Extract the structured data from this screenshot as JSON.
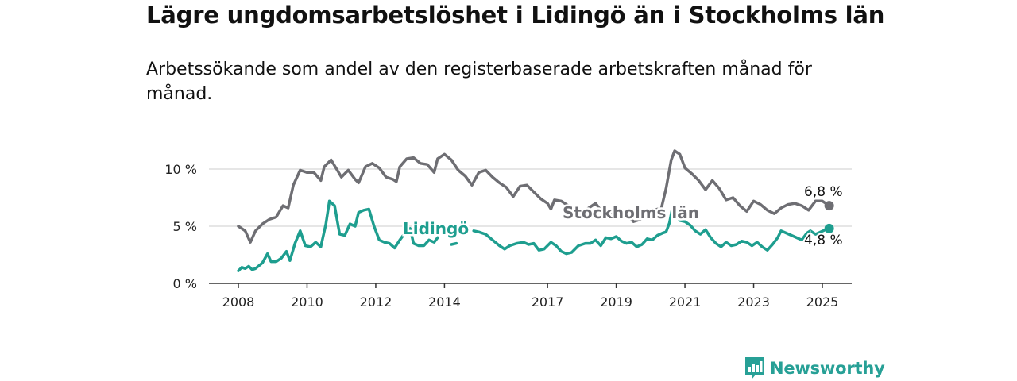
{
  "title": "Lägre ungdomsarbetslöshet i Lidingö än i Stockholms län",
  "subtitle": "Arbetssökande som andel av den registerbaserade arbetskraften månad för månad.",
  "logo_text": "Newsworthy",
  "colors": {
    "lidingo": "#1e9e8f",
    "stockholm": "#6e6e73",
    "grid": "#dddddd",
    "axis": "#333333",
    "logo": "#27a096"
  },
  "chart_data": {
    "type": "line",
    "ylim": [
      0,
      12
    ],
    "xlim": [
      2007.6,
      2026.0
    ],
    "yticks": [
      0,
      5,
      10
    ],
    "ytick_labels": [
      "0 %",
      "5 %",
      "10 %"
    ],
    "xticks": [
      2008,
      2010,
      2012,
      2014,
      2017,
      2019,
      2021,
      2023,
      2025
    ],
    "xtick_labels": [
      "2008",
      "2010",
      "2012",
      "2014",
      "2017",
      "2019",
      "2021",
      "2023",
      "2025"
    ],
    "grid": true,
    "series": [
      {
        "name": "Stockholms län",
        "end_label": "6,8 %",
        "points": [
          [
            2008.0,
            5.0
          ],
          [
            2008.2,
            4.6
          ],
          [
            2008.35,
            3.6
          ],
          [
            2008.5,
            4.6
          ],
          [
            2008.7,
            5.2
          ],
          [
            2008.9,
            5.6
          ],
          [
            2009.1,
            5.8
          ],
          [
            2009.3,
            6.8
          ],
          [
            2009.45,
            6.6
          ],
          [
            2009.6,
            8.6
          ],
          [
            2009.8,
            9.9
          ],
          [
            2010.0,
            9.7
          ],
          [
            2010.2,
            9.7
          ],
          [
            2010.4,
            9.0
          ],
          [
            2010.5,
            10.2
          ],
          [
            2010.7,
            10.8
          ],
          [
            2010.9,
            9.8
          ],
          [
            2011.0,
            9.3
          ],
          [
            2011.2,
            9.9
          ],
          [
            2011.4,
            9.1
          ],
          [
            2011.5,
            8.8
          ],
          [
            2011.7,
            10.2
          ],
          [
            2011.9,
            10.5
          ],
          [
            2012.1,
            10.1
          ],
          [
            2012.3,
            9.3
          ],
          [
            2012.5,
            9.1
          ],
          [
            2012.6,
            8.9
          ],
          [
            2012.7,
            10.2
          ],
          [
            2012.9,
            10.9
          ],
          [
            2013.1,
            11.0
          ],
          [
            2013.3,
            10.5
          ],
          [
            2013.5,
            10.4
          ],
          [
            2013.7,
            9.7
          ],
          [
            2013.8,
            10.9
          ],
          [
            2014.0,
            11.3
          ],
          [
            2014.2,
            10.8
          ],
          [
            2014.4,
            9.9
          ],
          [
            2014.6,
            9.4
          ],
          [
            2014.8,
            8.6
          ],
          [
            2015.0,
            9.7
          ],
          [
            2015.2,
            9.9
          ],
          [
            2015.4,
            9.3
          ],
          [
            2015.6,
            8.8
          ],
          [
            2015.8,
            8.4
          ],
          [
            2016.0,
            7.6
          ],
          [
            2016.2,
            8.5
          ],
          [
            2016.4,
            8.6
          ],
          [
            2016.6,
            8.0
          ],
          [
            2016.8,
            7.4
          ],
          [
            2017.0,
            7.0
          ],
          [
            2017.1,
            6.5
          ],
          [
            2017.2,
            7.3
          ],
          [
            2017.4,
            7.2
          ],
          [
            2017.6,
            6.8
          ],
          [
            2017.8,
            6.5
          ],
          [
            2018.0,
            6.2
          ],
          [
            2018.2,
            6.6
          ],
          [
            2018.4,
            7.0
          ],
          [
            2018.5,
            6.6
          ],
          [
            2018.6,
            6.3
          ],
          [
            2018.8,
            5.9
          ],
          [
            2019.0,
            6.3
          ],
          [
            2019.2,
            6.2
          ],
          [
            2019.4,
            5.7
          ],
          [
            2019.5,
            5.4
          ],
          [
            2019.7,
            5.6
          ],
          [
            2019.9,
            6.0
          ],
          [
            2020.0,
            6.3
          ],
          [
            2020.2,
            6.5
          ],
          [
            2020.3,
            6.4
          ],
          [
            2020.45,
            8.3
          ],
          [
            2020.6,
            10.8
          ],
          [
            2020.7,
            11.6
          ],
          [
            2020.85,
            11.3
          ],
          [
            2021.0,
            10.1
          ],
          [
            2021.2,
            9.6
          ],
          [
            2021.4,
            9.0
          ],
          [
            2021.6,
            8.2
          ],
          [
            2021.8,
            9.0
          ],
          [
            2022.0,
            8.3
          ],
          [
            2022.2,
            7.3
          ],
          [
            2022.4,
            7.5
          ],
          [
            2022.6,
            6.8
          ],
          [
            2022.8,
            6.3
          ],
          [
            2023.0,
            7.2
          ],
          [
            2023.2,
            6.9
          ],
          [
            2023.4,
            6.4
          ],
          [
            2023.6,
            6.1
          ],
          [
            2023.8,
            6.6
          ],
          [
            2024.0,
            6.9
          ],
          [
            2024.2,
            7.0
          ],
          [
            2024.4,
            6.8
          ],
          [
            2024.6,
            6.4
          ],
          [
            2024.8,
            7.2
          ],
          [
            2025.0,
            7.2
          ],
          [
            2025.2,
            6.8
          ]
        ]
      },
      {
        "name": "Lidingö",
        "end_label": "4,8 %",
        "points": [
          [
            2008.0,
            1.1
          ],
          [
            2008.1,
            1.4
          ],
          [
            2008.2,
            1.3
          ],
          [
            2008.3,
            1.5
          ],
          [
            2008.4,
            1.2
          ],
          [
            2008.5,
            1.3
          ],
          [
            2008.7,
            1.8
          ],
          [
            2008.85,
            2.6
          ],
          [
            2008.95,
            1.9
          ],
          [
            2009.1,
            1.9
          ],
          [
            2009.25,
            2.2
          ],
          [
            2009.4,
            2.8
          ],
          [
            2009.5,
            2.0
          ],
          [
            2009.65,
            3.5
          ],
          [
            2009.8,
            4.6
          ],
          [
            2009.95,
            3.3
          ],
          [
            2010.1,
            3.2
          ],
          [
            2010.25,
            3.6
          ],
          [
            2010.4,
            3.2
          ],
          [
            2010.55,
            5.2
          ],
          [
            2010.65,
            7.2
          ],
          [
            2010.8,
            6.8
          ],
          [
            2010.95,
            4.3
          ],
          [
            2011.1,
            4.2
          ],
          [
            2011.25,
            5.2
          ],
          [
            2011.4,
            5.0
          ],
          [
            2011.5,
            6.2
          ],
          [
            2011.65,
            6.4
          ],
          [
            2011.8,
            6.5
          ],
          [
            2011.95,
            5.0
          ],
          [
            2012.1,
            3.8
          ],
          [
            2012.25,
            3.6
          ],
          [
            2012.4,
            3.5
          ],
          [
            2012.55,
            3.1
          ],
          [
            2012.7,
            3.8
          ],
          [
            2012.85,
            4.4
          ],
          [
            2013.0,
            4.8
          ],
          [
            2013.1,
            3.5
          ],
          [
            2013.25,
            3.3
          ],
          [
            2013.4,
            3.3
          ],
          [
            2013.55,
            3.8
          ],
          [
            2013.7,
            3.6
          ],
          [
            2013.8,
            4.0
          ],
          null,
          [
            2014.2,
            3.4
          ],
          [
            2014.35,
            3.5
          ],
          null,
          [
            2014.85,
            4.6
          ],
          [
            2015.0,
            4.5
          ],
          [
            2015.2,
            4.3
          ],
          [
            2015.4,
            3.8
          ],
          [
            2015.6,
            3.3
          ],
          [
            2015.75,
            3.0
          ],
          [
            2015.9,
            3.3
          ],
          [
            2016.1,
            3.5
          ],
          [
            2016.3,
            3.6
          ],
          [
            2016.45,
            3.4
          ],
          [
            2016.6,
            3.5
          ],
          [
            2016.75,
            2.9
          ],
          [
            2016.9,
            3.0
          ],
          [
            2017.1,
            3.6
          ],
          [
            2017.25,
            3.3
          ],
          [
            2017.4,
            2.8
          ],
          [
            2017.55,
            2.6
          ],
          [
            2017.7,
            2.7
          ],
          [
            2017.9,
            3.3
          ],
          [
            2018.1,
            3.5
          ],
          [
            2018.25,
            3.5
          ],
          [
            2018.4,
            3.8
          ],
          [
            2018.55,
            3.3
          ],
          [
            2018.7,
            4.0
          ],
          [
            2018.85,
            3.9
          ],
          [
            2019.0,
            4.1
          ],
          [
            2019.15,
            3.7
          ],
          [
            2019.3,
            3.5
          ],
          [
            2019.45,
            3.6
          ],
          [
            2019.6,
            3.2
          ],
          [
            2019.75,
            3.4
          ],
          [
            2019.9,
            3.9
          ],
          [
            2020.05,
            3.8
          ],
          [
            2020.2,
            4.2
          ],
          [
            2020.35,
            4.4
          ],
          [
            2020.45,
            4.5
          ],
          [
            2020.55,
            5.3
          ],
          [
            2020.65,
            6.8
          ],
          [
            2020.75,
            6.5
          ],
          [
            2020.85,
            5.5
          ],
          [
            2021.0,
            5.4
          ],
          [
            2021.15,
            5.1
          ],
          [
            2021.3,
            4.6
          ],
          [
            2021.45,
            4.3
          ],
          [
            2021.6,
            4.7
          ],
          [
            2021.75,
            4.0
          ],
          [
            2021.9,
            3.5
          ],
          [
            2022.05,
            3.2
          ],
          [
            2022.2,
            3.6
          ],
          [
            2022.35,
            3.3
          ],
          [
            2022.5,
            3.4
          ],
          [
            2022.65,
            3.7
          ],
          [
            2022.8,
            3.6
          ],
          [
            2022.95,
            3.3
          ],
          [
            2023.1,
            3.6
          ],
          [
            2023.25,
            3.2
          ],
          [
            2023.4,
            2.9
          ],
          [
            2023.55,
            3.4
          ],
          [
            2023.7,
            4.0
          ],
          [
            2023.8,
            4.6
          ],
          [
            2023.95,
            4.4
          ],
          [
            2024.1,
            4.2
          ],
          [
            2024.25,
            4.0
          ],
          [
            2024.4,
            3.8
          ],
          [
            2024.55,
            4.4
          ],
          [
            2024.65,
            4.6
          ],
          [
            2024.8,
            4.3
          ],
          [
            2024.95,
            4.5
          ],
          [
            2025.1,
            4.7
          ],
          [
            2025.2,
            4.8
          ]
        ]
      }
    ]
  }
}
